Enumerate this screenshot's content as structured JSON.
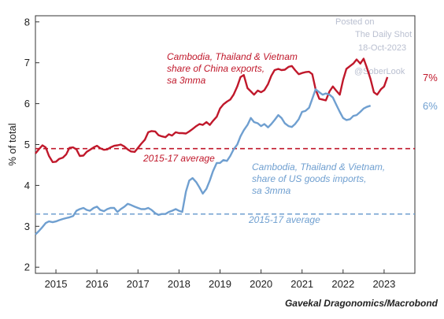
{
  "chart_data": {
    "type": "line",
    "ylabel": "% of total",
    "ylim": [
      1.85,
      8.15
    ],
    "yticks": [
      2,
      3,
      4,
      5,
      6,
      7,
      8
    ],
    "xlim": [
      2014.5,
      2023.75
    ],
    "xticks": [
      {
        "label": "2015",
        "x": 2015.0
      },
      {
        "label": "2016",
        "x": 2016.0
      },
      {
        "label": "2017",
        "x": 2017.0
      },
      {
        "label": "2018",
        "x": 2018.0
      },
      {
        "label": "2019",
        "x": 2019.0
      },
      {
        "label": "2020",
        "x": 2020.0
      },
      {
        "label": "2021",
        "x": 2021.0
      },
      {
        "label": "2022",
        "x": 2022.0
      },
      {
        "label": "2023",
        "x": 2023.0
      }
    ],
    "series": [
      {
        "label_lines": [
          "Cambodia, Thailand & Vietnam",
          "share of China exports,",
          "sa 3mma"
        ],
        "color": "#c0182b",
        "end_label": "7%",
        "average": 4.9,
        "average_label": "2015-17 average",
        "end_label_value": 6.65,
        "points": [
          [
            2014.5,
            4.78
          ],
          [
            2014.58,
            4.88
          ],
          [
            2014.67,
            4.98
          ],
          [
            2014.75,
            4.93
          ],
          [
            2014.83,
            4.72
          ],
          [
            2014.92,
            4.57
          ],
          [
            2015.0,
            4.58
          ],
          [
            2015.08,
            4.65
          ],
          [
            2015.17,
            4.68
          ],
          [
            2015.25,
            4.76
          ],
          [
            2015.33,
            4.92
          ],
          [
            2015.42,
            4.93
          ],
          [
            2015.5,
            4.88
          ],
          [
            2015.58,
            4.72
          ],
          [
            2015.67,
            4.73
          ],
          [
            2015.75,
            4.82
          ],
          [
            2015.83,
            4.87
          ],
          [
            2015.92,
            4.93
          ],
          [
            2016.0,
            4.97
          ],
          [
            2016.08,
            4.91
          ],
          [
            2016.17,
            4.87
          ],
          [
            2016.25,
            4.88
          ],
          [
            2016.33,
            4.93
          ],
          [
            2016.42,
            4.97
          ],
          [
            2016.5,
            4.98
          ],
          [
            2016.58,
            5.0
          ],
          [
            2016.67,
            4.95
          ],
          [
            2016.75,
            4.88
          ],
          [
            2016.83,
            4.83
          ],
          [
            2016.92,
            4.82
          ],
          [
            2017.0,
            4.92
          ],
          [
            2017.08,
            5.02
          ],
          [
            2017.17,
            5.12
          ],
          [
            2017.25,
            5.3
          ],
          [
            2017.33,
            5.33
          ],
          [
            2017.42,
            5.32
          ],
          [
            2017.5,
            5.23
          ],
          [
            2017.58,
            5.2
          ],
          [
            2017.67,
            5.18
          ],
          [
            2017.75,
            5.25
          ],
          [
            2017.83,
            5.22
          ],
          [
            2017.92,
            5.3
          ],
          [
            2018.0,
            5.28
          ],
          [
            2018.08,
            5.28
          ],
          [
            2018.17,
            5.27
          ],
          [
            2018.25,
            5.32
          ],
          [
            2018.33,
            5.38
          ],
          [
            2018.42,
            5.45
          ],
          [
            2018.5,
            5.5
          ],
          [
            2018.58,
            5.48
          ],
          [
            2018.67,
            5.55
          ],
          [
            2018.75,
            5.48
          ],
          [
            2018.83,
            5.58
          ],
          [
            2018.92,
            5.68
          ],
          [
            2019.0,
            5.88
          ],
          [
            2019.08,
            5.98
          ],
          [
            2019.17,
            6.05
          ],
          [
            2019.25,
            6.1
          ],
          [
            2019.33,
            6.22
          ],
          [
            2019.42,
            6.42
          ],
          [
            2019.5,
            6.65
          ],
          [
            2019.58,
            6.7
          ],
          [
            2019.67,
            6.38
          ],
          [
            2019.75,
            6.3
          ],
          [
            2019.83,
            6.22
          ],
          [
            2019.92,
            6.32
          ],
          [
            2020.0,
            6.28
          ],
          [
            2020.08,
            6.33
          ],
          [
            2020.17,
            6.48
          ],
          [
            2020.25,
            6.68
          ],
          [
            2020.33,
            6.82
          ],
          [
            2020.42,
            6.85
          ],
          [
            2020.5,
            6.82
          ],
          [
            2020.58,
            6.83
          ],
          [
            2020.67,
            6.9
          ],
          [
            2020.75,
            6.92
          ],
          [
            2020.83,
            6.82
          ],
          [
            2020.92,
            6.72
          ],
          [
            2021.0,
            6.75
          ],
          [
            2021.08,
            6.77
          ],
          [
            2021.17,
            6.78
          ],
          [
            2021.25,
            6.72
          ],
          [
            2021.33,
            6.35
          ],
          [
            2021.42,
            6.12
          ],
          [
            2021.5,
            6.1
          ],
          [
            2021.58,
            6.08
          ],
          [
            2021.67,
            6.3
          ],
          [
            2021.75,
            6.42
          ],
          [
            2021.83,
            6.32
          ],
          [
            2021.92,
            6.22
          ],
          [
            2022.0,
            6.58
          ],
          [
            2022.08,
            6.85
          ],
          [
            2022.17,
            6.92
          ],
          [
            2022.25,
            6.98
          ],
          [
            2022.33,
            7.08
          ],
          [
            2022.42,
            6.98
          ],
          [
            2022.5,
            7.1
          ],
          [
            2022.58,
            6.88
          ],
          [
            2022.67,
            6.6
          ],
          [
            2022.75,
            6.28
          ],
          [
            2022.83,
            6.22
          ],
          [
            2022.92,
            6.35
          ],
          [
            2023.0,
            6.42
          ],
          [
            2023.08,
            6.65
          ]
        ]
      },
      {
        "label_lines": [
          "Cambodia, Thailand & Vietnam,",
          "share of US goods imports,",
          "sa 3mma"
        ],
        "color": "#6f9fd0",
        "end_label": "6%",
        "average": 3.3,
        "average_label": "2015-17 average",
        "end_label_value": 5.95,
        "points": [
          [
            2014.5,
            2.8
          ],
          [
            2014.58,
            2.88
          ],
          [
            2014.67,
            2.98
          ],
          [
            2014.75,
            3.08
          ],
          [
            2014.83,
            3.12
          ],
          [
            2014.92,
            3.1
          ],
          [
            2015.0,
            3.12
          ],
          [
            2015.08,
            3.15
          ],
          [
            2015.17,
            3.18
          ],
          [
            2015.25,
            3.2
          ],
          [
            2015.33,
            3.22
          ],
          [
            2015.42,
            3.25
          ],
          [
            2015.5,
            3.38
          ],
          [
            2015.58,
            3.42
          ],
          [
            2015.67,
            3.45
          ],
          [
            2015.75,
            3.4
          ],
          [
            2015.83,
            3.38
          ],
          [
            2015.92,
            3.45
          ],
          [
            2016.0,
            3.48
          ],
          [
            2016.08,
            3.4
          ],
          [
            2016.17,
            3.37
          ],
          [
            2016.25,
            3.42
          ],
          [
            2016.33,
            3.45
          ],
          [
            2016.42,
            3.45
          ],
          [
            2016.5,
            3.35
          ],
          [
            2016.58,
            3.42
          ],
          [
            2016.67,
            3.48
          ],
          [
            2016.75,
            3.55
          ],
          [
            2016.83,
            3.52
          ],
          [
            2016.92,
            3.48
          ],
          [
            2017.0,
            3.45
          ],
          [
            2017.08,
            3.42
          ],
          [
            2017.17,
            3.42
          ],
          [
            2017.25,
            3.45
          ],
          [
            2017.33,
            3.4
          ],
          [
            2017.42,
            3.32
          ],
          [
            2017.5,
            3.28
          ],
          [
            2017.58,
            3.3
          ],
          [
            2017.67,
            3.3
          ],
          [
            2017.75,
            3.35
          ],
          [
            2017.83,
            3.38
          ],
          [
            2017.92,
            3.42
          ],
          [
            2018.0,
            3.38
          ],
          [
            2018.08,
            3.35
          ],
          [
            2018.17,
            3.85
          ],
          [
            2018.25,
            4.12
          ],
          [
            2018.33,
            4.18
          ],
          [
            2018.42,
            4.08
          ],
          [
            2018.5,
            3.95
          ],
          [
            2018.58,
            3.8
          ],
          [
            2018.67,
            3.92
          ],
          [
            2018.75,
            4.12
          ],
          [
            2018.83,
            4.35
          ],
          [
            2018.92,
            4.55
          ],
          [
            2019.0,
            4.55
          ],
          [
            2019.08,
            4.62
          ],
          [
            2019.17,
            4.6
          ],
          [
            2019.25,
            4.72
          ],
          [
            2019.33,
            4.88
          ],
          [
            2019.42,
            5.0
          ],
          [
            2019.5,
            5.2
          ],
          [
            2019.58,
            5.35
          ],
          [
            2019.67,
            5.48
          ],
          [
            2019.75,
            5.65
          ],
          [
            2019.83,
            5.55
          ],
          [
            2019.92,
            5.52
          ],
          [
            2020.0,
            5.45
          ],
          [
            2020.08,
            5.5
          ],
          [
            2020.17,
            5.42
          ],
          [
            2020.25,
            5.5
          ],
          [
            2020.33,
            5.6
          ],
          [
            2020.42,
            5.72
          ],
          [
            2020.5,
            5.65
          ],
          [
            2020.58,
            5.52
          ],
          [
            2020.67,
            5.45
          ],
          [
            2020.75,
            5.43
          ],
          [
            2020.83,
            5.5
          ],
          [
            2020.92,
            5.62
          ],
          [
            2021.0,
            5.8
          ],
          [
            2021.08,
            5.82
          ],
          [
            2021.17,
            5.9
          ],
          [
            2021.25,
            6.12
          ],
          [
            2021.33,
            6.35
          ],
          [
            2021.42,
            6.28
          ],
          [
            2021.5,
            6.22
          ],
          [
            2021.58,
            6.25
          ],
          [
            2021.67,
            6.22
          ],
          [
            2021.75,
            6.15
          ],
          [
            2021.83,
            5.98
          ],
          [
            2021.92,
            5.8
          ],
          [
            2022.0,
            5.65
          ],
          [
            2022.08,
            5.6
          ],
          [
            2022.17,
            5.62
          ],
          [
            2022.25,
            5.7
          ],
          [
            2022.33,
            5.72
          ],
          [
            2022.42,
            5.8
          ],
          [
            2022.5,
            5.88
          ],
          [
            2022.58,
            5.92
          ],
          [
            2022.67,
            5.95
          ]
        ]
      }
    ],
    "watermark_lines": [
      "Posted on",
      "The Daily Shot",
      "18-Oct-2023",
      "@SoberLook"
    ],
    "source": "Gavekal Dragonomics/Macrobond"
  }
}
